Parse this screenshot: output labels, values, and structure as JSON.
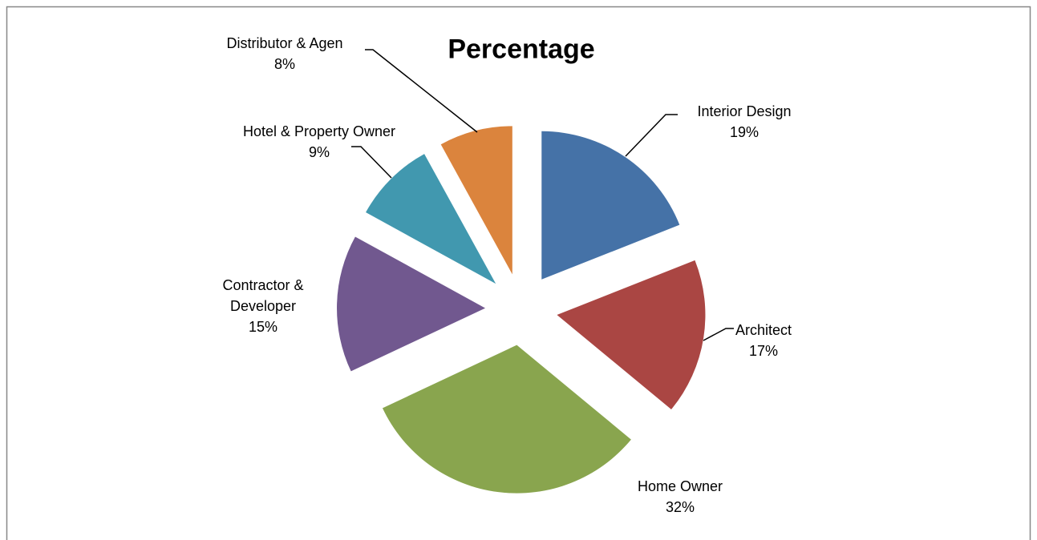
{
  "chart_data": {
    "type": "pie",
    "title": "Percentage",
    "categories": [
      "Interior Design",
      "Architect",
      "Home Owner",
      "Contractor & Developer",
      "Hotel & Property Owner",
      "Distributor & Agen"
    ],
    "values": [
      19,
      17,
      32,
      15,
      9,
      8
    ],
    "value_labels": [
      "19%",
      "17%",
      "32%",
      "15%",
      "9%",
      "8%"
    ],
    "colors": [
      "#4572a7",
      "#aa4643",
      "#89a54e",
      "#71588f",
      "#4198af",
      "#db843d"
    ],
    "exploded": true
  }
}
